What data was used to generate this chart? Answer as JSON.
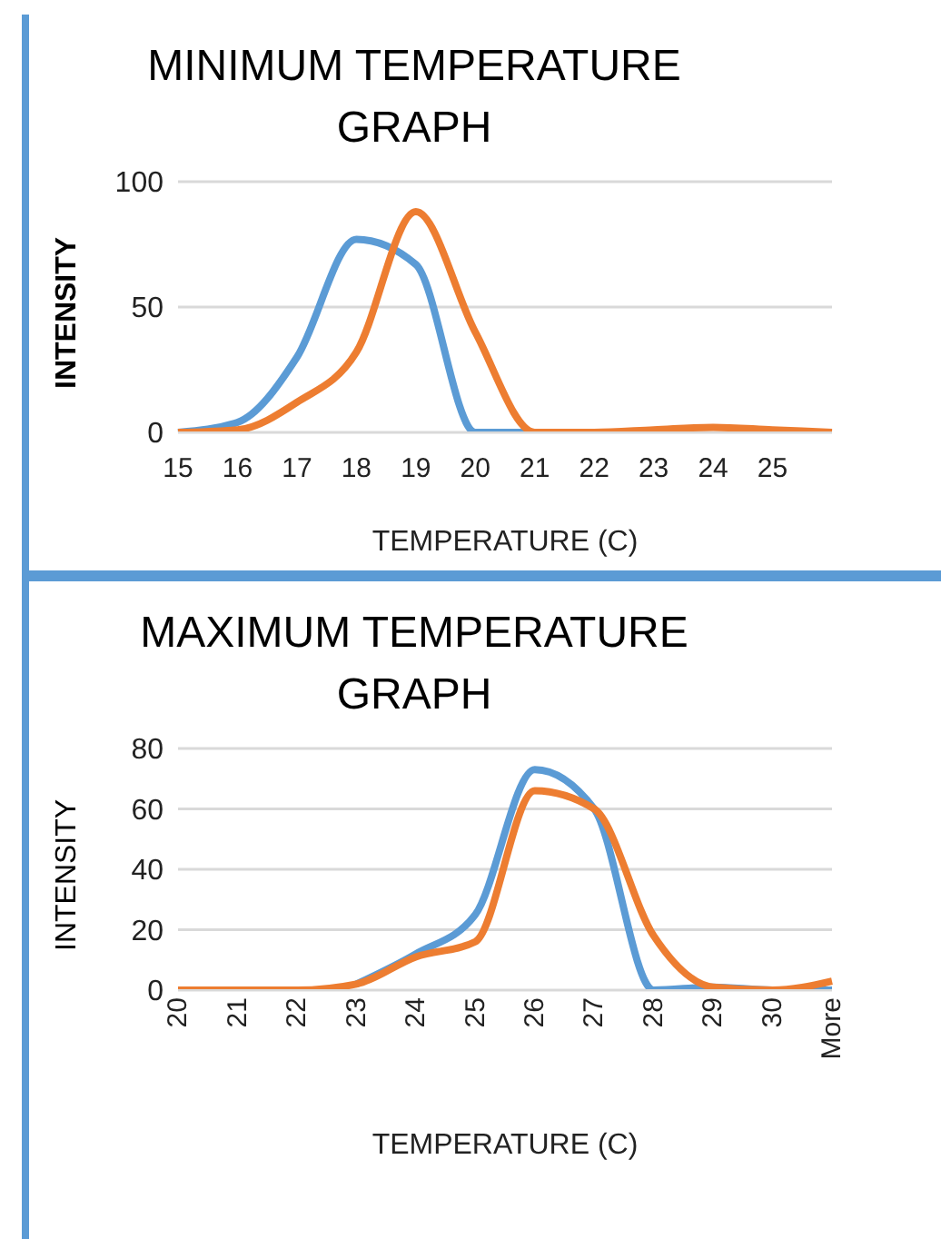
{
  "chart_data": [
    {
      "type": "line",
      "title": "MINIMUM TEMPERATURE GRAPH",
      "xlabel": "TEMPERATURE (C)",
      "ylabel": "INTENSITY",
      "categories": [
        "15",
        "16",
        "17",
        "18",
        "19",
        "20",
        "21",
        "22",
        "23",
        "24",
        "25",
        null
      ],
      "series": [
        {
          "color": "#5b9bd5",
          "values": [
            0,
            4,
            30,
            77,
            67,
            0,
            0,
            0,
            null,
            null,
            null,
            null
          ]
        },
        {
          "color": "#ed7d31",
          "values": [
            0,
            1,
            12,
            32,
            88,
            40,
            0,
            0,
            1,
            2,
            1,
            0
          ]
        }
      ],
      "ylim": [
        0,
        100
      ],
      "yticks": [
        0,
        50,
        100
      ],
      "grid": "y",
      "legend": false,
      "marker": "none",
      "line_style": "solid"
    },
    {
      "type": "line",
      "title": "MAXIMUM TEMPERATURE GRAPH",
      "xlabel": "TEMPERATURE (C)",
      "ylabel": "INTENSITY",
      "categories": [
        "20",
        "21",
        "22",
        "23",
        "24",
        "25",
        "26",
        "27",
        "28",
        "29",
        "30",
        "More"
      ],
      "series": [
        {
          "color": "#5b9bd5",
          "values": [
            null,
            null,
            null,
            2,
            12,
            25,
            73,
            60,
            0,
            1,
            0,
            0
          ]
        },
        {
          "color": "#ed7d31",
          "values": [
            0,
            0,
            0,
            2,
            11,
            16,
            66,
            60,
            18,
            1,
            0,
            3
          ]
        }
      ],
      "ylim": [
        0,
        80
      ],
      "yticks": [
        0,
        20,
        40,
        60,
        80
      ],
      "grid": "y",
      "legend": false,
      "marker": "none",
      "line_style": "solid"
    }
  ]
}
